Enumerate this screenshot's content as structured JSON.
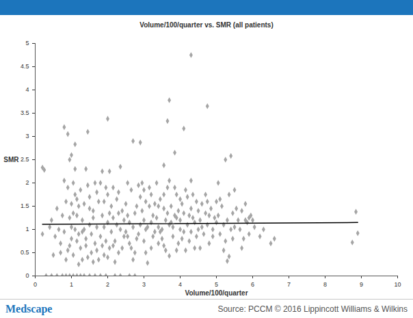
{
  "chart_data": {
    "type": "scatter",
    "title": "Volume/100/quarter vs. SMR (all patients)",
    "xlabel": "Volume/100/quarter",
    "ylabel": "SMR",
    "annotations": [
      "Medscape",
      "Source: PCCM © 2016 Lippincott Williams & Wilkins"
    ],
    "xlim": [
      0,
      10
    ],
    "xticks": [
      0,
      1,
      2,
      3,
      4,
      5,
      6,
      7,
      8,
      9,
      10
    ],
    "ylim": [
      0,
      5
    ],
    "yticks": [
      0,
      0.5,
      1,
      1.5,
      2,
      2.5,
      3,
      3.5,
      4,
      4.5,
      5
    ],
    "grid": false,
    "series": [
      {
        "type": "scatter",
        "color": "#a5a5a5",
        "marker": "diamond",
        "x": [
          0.3,
          0.45,
          0.6,
          0.5,
          0.55,
          0.6,
          0.45,
          0.65,
          0.7,
          0.4,
          0.75,
          0.85,
          0.95,
          0.8,
          0.85,
          0.9,
          0.95,
          1.0,
          0.75,
          0.8,
          0.9,
          1.0,
          0.85,
          0.95,
          1.0,
          0.7,
          1.05,
          1.15,
          1.25,
          1.05,
          1.1,
          1.15,
          1.2,
          1.25,
          1.05,
          1.1,
          1.2,
          1.3,
          1.15,
          1.25,
          1.3,
          1.1,
          1.2,
          1.3,
          1.05,
          1.15,
          1.35,
          1.5,
          1.65,
          1.35,
          1.4,
          1.45,
          1.5,
          1.55,
          1.6,
          1.65,
          1.7,
          1.4,
          1.45,
          1.5,
          1.55,
          1.6,
          1.65,
          1.7,
          1.35,
          1.4,
          1.5,
          1.6,
          1.7,
          1.8,
          1.95,
          1.75,
          1.8,
          1.85,
          1.9,
          1.95,
          2.0,
          2.05,
          2.1,
          1.75,
          1.8,
          1.85,
          1.9,
          1.95,
          2.0,
          2.05,
          2.1,
          1.9,
          2.0,
          1.85,
          2.2,
          2.35,
          2.15,
          2.2,
          2.25,
          2.3,
          2.35,
          2.4,
          2.45,
          2.5,
          2.15,
          2.2,
          2.25,
          2.3,
          2.4,
          2.45,
          2.5,
          2.3,
          2.15,
          2.6,
          2.75,
          2.55,
          2.6,
          2.65,
          2.7,
          2.75,
          2.8,
          2.85,
          2.9,
          2.55,
          2.6,
          2.7,
          2.75,
          2.8,
          2.85,
          2.9,
          2.65,
          2.55,
          2.95,
          3.0,
          3.05,
          3.1,
          3.1,
          3.15,
          3.2,
          3.25,
          3.3,
          2.95,
          3.0,
          3.05,
          3.15,
          3.2,
          3.25,
          3.3,
          3.0,
          3.2,
          3.05,
          3.35,
          3.4,
          3.45,
          3.5,
          3.55,
          3.6,
          3.65,
          3.7,
          3.35,
          3.4,
          3.5,
          3.55,
          3.6,
          3.7,
          3.7,
          3.45,
          3.65,
          3.4,
          3.55,
          3.75,
          3.8,
          3.85,
          3.9,
          3.95,
          4.0,
          4.05,
          4.1,
          3.8,
          3.85,
          3.9,
          3.95,
          4.0,
          4.05,
          4.1,
          3.75,
          4.0,
          3.9,
          4.15,
          4.2,
          4.25,
          4.3,
          4.35,
          4.4,
          4.45,
          4.5,
          4.2,
          4.25,
          4.3,
          4.35,
          4.4,
          4.45,
          4.5,
          4.15,
          4.3,
          4.55,
          4.6,
          4.65,
          4.7,
          4.75,
          4.8,
          4.85,
          4.9,
          4.95,
          5.0,
          4.6,
          4.7,
          4.8,
          4.9,
          4.55,
          4.75,
          5.0,
          5.05,
          5.1,
          5.15,
          5.2,
          5.25,
          5.3,
          5.35,
          5.4,
          5.45,
          5.5,
          5.55,
          5.1,
          5.2,
          5.3,
          5.35,
          5.45,
          5.5,
          5.6,
          5.65,
          5.7,
          5.75,
          5.8,
          5.85,
          5.9,
          5.95,
          6.05,
          5.7,
          5.8,
          4.3,
          3.7,
          4.75,
          3.65,
          2.0,
          0.8,
          1.45,
          4.1,
          0.9,
          2.7,
          2.9,
          1.1,
          3.85,
          5.4,
          5.25,
          0.2,
          0.25,
          1.0,
          0.95,
          2.35,
          2.05,
          3.55,
          5.05,
          8.85,
          8.9,
          8.75,
          6.5,
          6.6,
          6.3,
          6.2,
          6.0,
          5.9,
          0.2
        ],
        "values": [
          0,
          0,
          0,
          0.45,
          0.85,
          1.45,
          1.2,
          1.0,
          0.7,
          1.05,
          0,
          0,
          0,
          0.95,
          1.6,
          0.55,
          1.25,
          0.8,
          1.3,
          2.05,
          1.9,
          1.55,
          0.35,
          0.65,
          1.05,
          0.5,
          0,
          0,
          0,
          2.0,
          1.75,
          1.3,
          0.9,
          0.6,
          0.45,
          1.0,
          1.5,
          1.2,
          0.75,
          1.85,
          0.35,
          2.3,
          0.25,
          0.95,
          1.35,
          1.65,
          0,
          0,
          0,
          1.55,
          0.8,
          1.95,
          1.1,
          0.5,
          1.4,
          0.7,
          1.8,
          2.3,
          0.4,
          1.7,
          0.9,
          1.25,
          2.0,
          0.55,
          1.0,
          0.65,
          1.45,
          0.3,
          1.05,
          0,
          0,
          1.6,
          0.85,
          1.3,
          0.45,
          1.9,
          1.15,
          0.6,
          1.5,
          0.35,
          2.0,
          0.65,
          1.05,
          0.75,
          1.75,
          1.35,
          0.95,
          1.6,
          0.4,
          2.25,
          0,
          0,
          1.25,
          0.75,
          1.65,
          0.5,
          1.0,
          1.4,
          0.85,
          1.55,
          1.9,
          0.3,
          1.1,
          1.8,
          0.6,
          1.2,
          0.95,
          1.35,
          0.65,
          0,
          0,
          1.3,
          0.7,
          1.85,
          1.05,
          0.5,
          1.5,
          0.9,
          1.7,
          2.0,
          1.15,
          0.35,
          1.35,
          0.8,
          1.95,
          1.1,
          0.6,
          0.85,
          1.4,
          0.75,
          1.6,
          0.28,
          1.05,
          1.9,
          0.6,
          1.3,
          0.95,
          2.0,
          1.2,
          0.5,
          1.5,
          1.75,
          0.85,
          1.55,
          1.85,
          1.15,
          1.0,
          1.25,
          0.7,
          1.65,
          1.0,
          1.45,
          0.55,
          1.9,
          1.1,
          2.0,
          1.5,
          0.8,
          1.75,
          1.2,
          0.43,
          2.05,
          0.95,
          1.35,
          1.05,
          0.65,
          1.5,
          0.85,
          1.3,
          1.75,
          0.7,
          1.2,
          1.55,
          0.95,
          1.05,
          1.9,
          0.55,
          1.4,
          1.65,
          0.8,
          1.35,
          1.15,
          1.0,
          1.25,
          1.85,
          1.1,
          0.75,
          1.45,
          1.25,
          0.6,
          1.6,
          1.0,
          1.7,
          1.3,
          0.95,
          1.75,
          1.15,
          0.85,
          1.4,
          0.55,
          2.05,
          1.2,
          1.55,
          0.9,
          1.35,
          1.1,
          0.7,
          1.45,
          1.0,
          1.25,
          1.6,
          1.05,
          1.75,
          1.3,
          0.85,
          0.6,
          1.6,
          1.15,
          1.3,
          0.9,
          1.5,
          1.1,
          0.75,
          1.2,
          1.75,
          1.0,
          1.35,
          1.05,
          1.45,
          1.65,
          0.55,
          0.32,
          0.42,
          0.8,
          1.85,
          1.2,
          1.0,
          1.4,
          0.8,
          1.55,
          1.15,
          0.9,
          1.3,
          1.05,
          0.6,
          1.2,
          4.75,
          3.78,
          3.65,
          3.33,
          3.38,
          3.2,
          3.1,
          3.17,
          3.05,
          2.9,
          2.87,
          2.83,
          2.65,
          2.58,
          2.5,
          2.33,
          2.28,
          2.6,
          2.5,
          2.35,
          2.25,
          2.38,
          2.0,
          1.38,
          0.92,
          0.72,
          0.7,
          0.8,
          1.0,
          0.85,
          1.2,
          1.25,
          0.9
        ]
      },
      {
        "type": "line",
        "color": "#000000",
        "x": [
          0.2,
          8.9
        ],
        "values": [
          1.11,
          1.15
        ]
      }
    ]
  }
}
